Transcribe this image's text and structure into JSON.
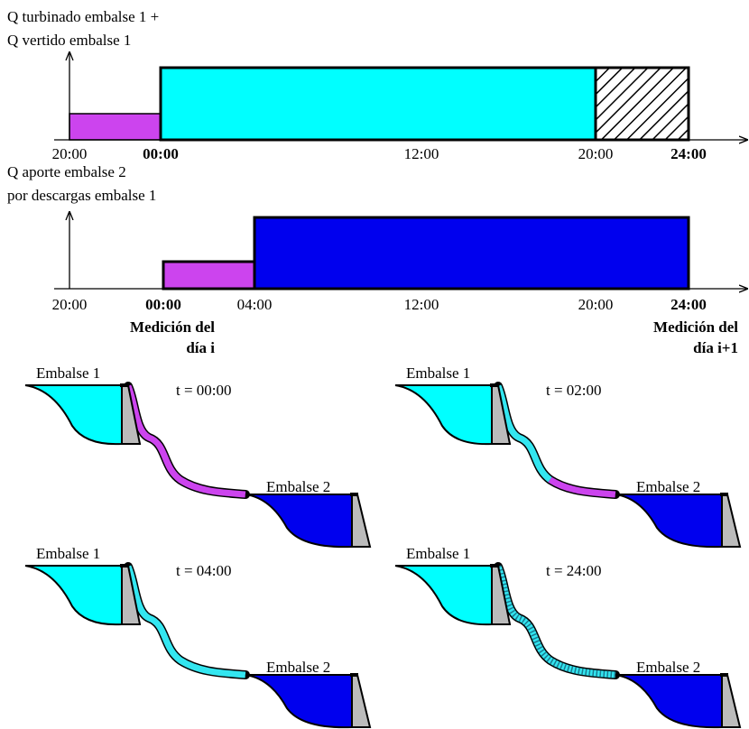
{
  "timeline1": {
    "label": [
      "Q turbinado embalse 1 +",
      "Q vertido embalse 1"
    ],
    "ticks": [
      "20:00",
      "00:00",
      "12:00",
      "20:00",
      "24:00"
    ]
  },
  "timeline2": {
    "label": [
      "Q aporte embalse 2",
      "por descargas embalse 1"
    ],
    "ticks": [
      "20:00",
      "00:00",
      "04:00",
      "12:00",
      "20:00",
      "24:00"
    ],
    "measurements": [
      [
        "Medición del",
        "día i"
      ],
      [
        "Medición del",
        "día i+1"
      ]
    ]
  },
  "panels": [
    {
      "reservoir1": "Embalse 1",
      "reservoir2": "Embalse 2",
      "time": "t = 00:00"
    },
    {
      "reservoir1": "Embalse 1",
      "reservoir2": "Embalse 2",
      "time": "t = 02:00"
    },
    {
      "reservoir1": "Embalse 1",
      "reservoir2": "Embalse 2",
      "time": "t = 04:00"
    },
    {
      "reservoir1": "Embalse 1",
      "reservoir2": "Embalse 2",
      "time": "t = 24:00"
    }
  ]
}
